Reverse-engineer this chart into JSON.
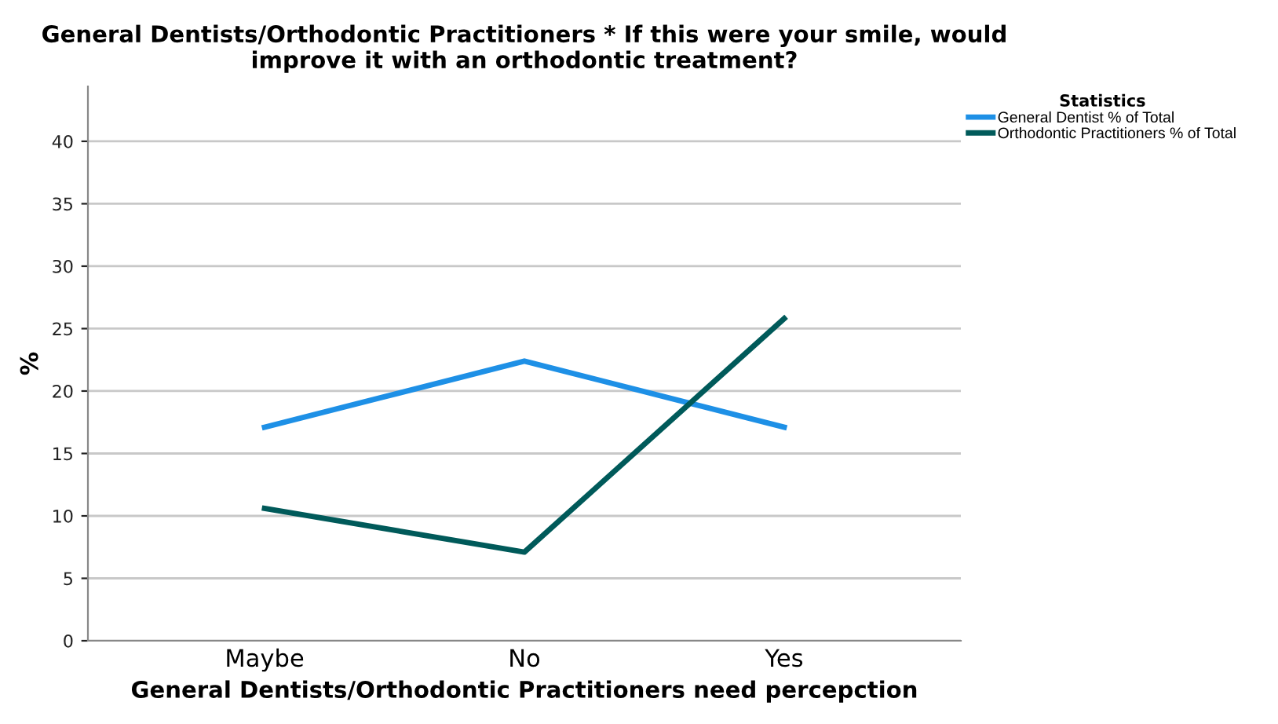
{
  "chart_data": {
    "type": "line",
    "title": "General Dentists/Orthodontic Practitioners * If this were your smile, would improve it with an orthodontic treatment?",
    "xlabel": "General Dentists/Orthodontic Practitioners need percepction",
    "ylabel": "%",
    "legend_title": "Statistics",
    "categories": [
      "Maybe",
      "No",
      "Yes"
    ],
    "series": [
      {
        "name": "General Dentist % of Total",
        "color": "#1e90e6",
        "values": [
          17.1,
          22.4,
          17.1
        ]
      },
      {
        "name": "Orthodontic Practitioners % of Total",
        "color": "#005a5a",
        "values": [
          10.6,
          7.1,
          25.8
        ]
      }
    ],
    "ylim": [
      0,
      44.4
    ],
    "yticks": [
      0,
      5,
      10,
      15,
      20,
      25,
      30,
      35,
      40
    ],
    "grid": "y",
    "legend": "top right",
    "marker": "none",
    "line_style": "solid"
  }
}
